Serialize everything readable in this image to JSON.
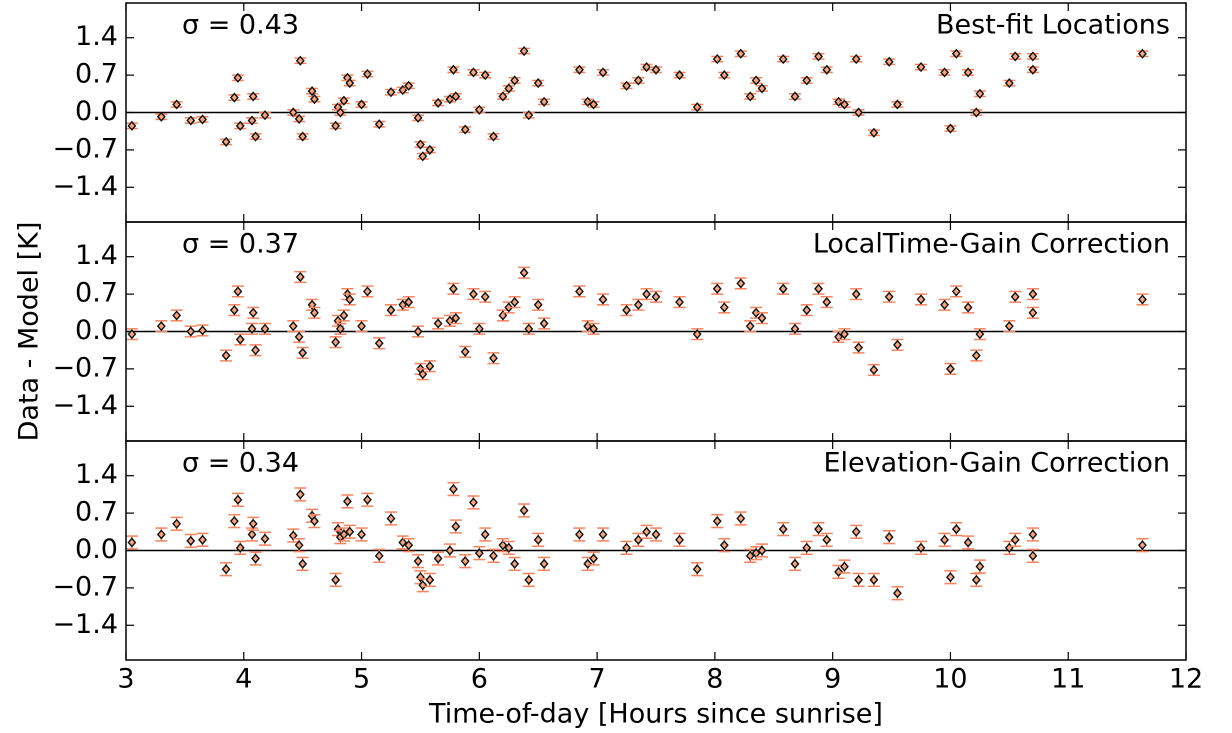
{
  "chart_data": [
    {
      "type": "scatter",
      "annotation": "σ = 0.43",
      "title": "Best-fit Locations",
      "x": [
        3.05,
        3.3,
        3.43,
        3.55,
        3.65,
        3.85,
        3.92,
        3.95,
        3.97,
        4.07,
        4.08,
        4.1,
        4.18,
        4.42,
        4.48,
        4.5,
        4.47,
        4.58,
        4.6,
        4.78,
        4.8,
        4.82,
        4.85,
        4.88,
        4.9,
        5.0,
        5.05,
        5.15,
        5.25,
        5.35,
        5.4,
        5.48,
        5.5,
        5.52,
        5.58,
        5.65,
        5.75,
        5.78,
        5.8,
        5.88,
        5.95,
        6.0,
        6.05,
        6.12,
        6.2,
        6.25,
        6.3,
        6.38,
        6.42,
        6.5,
        6.55,
        6.85,
        6.92,
        6.97,
        7.05,
        7.25,
        7.35,
        7.42,
        7.5,
        7.7,
        7.85,
        8.02,
        8.08,
        8.22,
        8.3,
        8.35,
        8.4,
        8.58,
        8.68,
        8.78,
        8.88,
        8.95,
        9.05,
        9.1,
        9.2,
        9.22,
        9.35,
        9.48,
        9.55,
        9.75,
        9.95,
        10.0,
        10.05,
        10.15,
        10.22,
        10.25,
        10.5,
        10.55,
        10.7,
        10.7,
        11.63
      ],
      "values": [
        -0.25,
        -0.08,
        0.15,
        -0.15,
        -0.13,
        -0.55,
        0.28,
        0.65,
        -0.25,
        -0.15,
        0.3,
        -0.45,
        -0.05,
        0.0,
        0.97,
        -0.45,
        -0.12,
        0.4,
        0.25,
        -0.25,
        0.1,
        0.0,
        0.22,
        0.65,
        0.55,
        0.15,
        0.72,
        -0.22,
        0.38,
        0.42,
        0.5,
        -0.1,
        -0.6,
        -0.82,
        -0.7,
        0.18,
        0.25,
        0.8,
        0.3,
        -0.32,
        0.75,
        0.05,
        0.7,
        -0.45,
        0.3,
        0.45,
        0.6,
        1.15,
        -0.05,
        0.55,
        0.2,
        0.8,
        0.2,
        0.15,
        0.75,
        0.5,
        0.6,
        0.85,
        0.8,
        0.7,
        0.1,
        1.0,
        0.7,
        1.1,
        0.3,
        0.6,
        0.45,
        1.0,
        0.3,
        0.6,
        1.05,
        0.8,
        0.2,
        0.15,
        1.0,
        0.0,
        -0.38,
        0.95,
        0.15,
        0.85,
        0.75,
        -0.3,
        1.1,
        0.75,
        0.0,
        0.35,
        0.55,
        1.05,
        1.05,
        0.8,
        1.1
      ],
      "error": 0.05,
      "color": "#f4845f",
      "xlim": [
        3,
        12
      ],
      "xticks": [
        3,
        4,
        5,
        6,
        7,
        8,
        9,
        10,
        11,
        12
      ],
      "ylim": [
        -2.05,
        2.05
      ],
      "yticks": [
        {
          "value": -1.4,
          "label": "−1.4"
        },
        {
          "value": -0.7,
          "label": "−0.7"
        },
        {
          "value": 0,
          "label": "0.0"
        },
        0.7,
        1.4
      ]
    },
    {
      "type": "scatter",
      "annotation": "σ = 0.37",
      "title": "LocalTime-Gain Correction",
      "ylabel": "Data - Model [K]",
      "x": [
        3.05,
        3.3,
        3.43,
        3.55,
        3.65,
        3.85,
        3.92,
        3.95,
        3.97,
        4.07,
        4.08,
        4.1,
        4.18,
        4.42,
        4.48,
        4.5,
        4.47,
        4.58,
        4.6,
        4.78,
        4.8,
        4.82,
        4.85,
        4.88,
        4.9,
        5.0,
        5.05,
        5.15,
        5.25,
        5.35,
        5.4,
        5.48,
        5.5,
        5.52,
        5.58,
        5.65,
        5.75,
        5.78,
        5.8,
        5.88,
        5.95,
        6.0,
        6.05,
        6.12,
        6.2,
        6.25,
        6.3,
        6.38,
        6.42,
        6.5,
        6.55,
        6.85,
        6.92,
        6.97,
        7.05,
        7.25,
        7.35,
        7.42,
        7.5,
        7.7,
        7.85,
        8.02,
        8.08,
        8.22,
        8.3,
        8.35,
        8.4,
        8.58,
        8.68,
        8.78,
        8.88,
        8.95,
        9.05,
        9.1,
        9.2,
        9.22,
        9.35,
        9.48,
        9.55,
        9.75,
        9.95,
        10.0,
        10.05,
        10.15,
        10.22,
        10.25,
        10.5,
        10.55,
        10.7,
        10.7,
        11.63
      ],
      "values": [
        -0.05,
        0.1,
        0.3,
        0.0,
        0.02,
        -0.45,
        0.4,
        0.75,
        -0.15,
        0.05,
        0.35,
        -0.35,
        0.05,
        0.1,
        1.02,
        -0.4,
        -0.1,
        0.5,
        0.35,
        -0.2,
        0.2,
        0.05,
        0.3,
        0.7,
        0.6,
        0.1,
        0.75,
        -0.22,
        0.4,
        0.5,
        0.55,
        0.0,
        -0.7,
        -0.8,
        -0.65,
        0.15,
        0.2,
        0.8,
        0.25,
        -0.38,
        0.7,
        0.05,
        0.65,
        -0.5,
        0.3,
        0.45,
        0.55,
        1.1,
        0.05,
        0.5,
        0.15,
        0.75,
        0.1,
        0.05,
        0.6,
        0.4,
        0.5,
        0.7,
        0.65,
        0.55,
        -0.05,
        0.8,
        0.45,
        0.9,
        0.1,
        0.35,
        0.25,
        0.8,
        0.05,
        0.4,
        0.8,
        0.55,
        -0.1,
        -0.05,
        0.7,
        -0.3,
        -0.72,
        0.65,
        -0.25,
        0.6,
        0.5,
        -0.7,
        0.75,
        0.45,
        -0.45,
        -0.05,
        0.1,
        0.65,
        0.7,
        0.35,
        0.6
      ],
      "error": 0.1,
      "color": "#f4845f",
      "xlim": [
        3,
        12
      ],
      "xticks": [
        3,
        4,
        5,
        6,
        7,
        8,
        9,
        10,
        11,
        12
      ],
      "ylim": [
        -2.05,
        2.05
      ],
      "yticks": [
        {
          "value": -1.4,
          "label": "−1.4"
        },
        {
          "value": -0.7,
          "label": "−0.7"
        },
        {
          "value": 0,
          "label": "0.0"
        },
        0.7,
        1.4
      ]
    },
    {
      "type": "scatter",
      "annotation": "σ = 0.34",
      "title": "Elevation-Gain Correction",
      "xlabel": "Time-of-day [Hours since sunrise]",
      "x": [
        3.05,
        3.3,
        3.43,
        3.55,
        3.65,
        3.85,
        3.92,
        3.95,
        3.97,
        4.07,
        4.08,
        4.1,
        4.18,
        4.42,
        4.48,
        4.5,
        4.47,
        4.58,
        4.6,
        4.78,
        4.8,
        4.82,
        4.85,
        4.88,
        4.9,
        5.0,
        5.05,
        5.15,
        5.25,
        5.35,
        5.4,
        5.48,
        5.5,
        5.52,
        5.58,
        5.65,
        5.75,
        5.78,
        5.8,
        5.88,
        5.95,
        6.0,
        6.05,
        6.12,
        6.2,
        6.25,
        6.3,
        6.38,
        6.42,
        6.5,
        6.55,
        6.85,
        6.92,
        6.97,
        7.05,
        7.25,
        7.35,
        7.42,
        7.5,
        7.7,
        7.85,
        8.02,
        8.08,
        8.22,
        8.3,
        8.35,
        8.4,
        8.58,
        8.68,
        8.78,
        8.88,
        8.95,
        9.05,
        9.1,
        9.2,
        9.22,
        9.35,
        9.48,
        9.55,
        9.75,
        9.95,
        10.0,
        10.05,
        10.15,
        10.22,
        10.25,
        10.5,
        10.55,
        10.7,
        10.7,
        11.63
      ],
      "values": [
        0.15,
        0.3,
        0.5,
        0.18,
        0.2,
        -0.35,
        0.55,
        0.95,
        0.05,
        0.3,
        0.5,
        -0.15,
        0.22,
        0.28,
        1.05,
        -0.25,
        0.1,
        0.65,
        0.55,
        -0.55,
        0.4,
        0.25,
        0.3,
        0.92,
        0.35,
        0.3,
        0.95,
        -0.1,
        0.6,
        0.15,
        0.1,
        -0.2,
        -0.5,
        -0.65,
        -0.55,
        -0.15,
        0.0,
        1.15,
        0.45,
        -0.2,
        0.9,
        -0.05,
        0.3,
        -0.1,
        0.1,
        0.05,
        -0.25,
        0.75,
        -0.55,
        0.2,
        -0.25,
        0.3,
        -0.25,
        -0.15,
        0.3,
        0.05,
        0.2,
        0.35,
        0.3,
        0.2,
        -0.35,
        0.55,
        0.1,
        0.6,
        -0.1,
        -0.05,
        0.0,
        0.4,
        -0.25,
        0.05,
        0.4,
        0.2,
        -0.4,
        -0.3,
        0.35,
        -0.55,
        -0.55,
        0.25,
        -0.8,
        0.05,
        0.2,
        -0.5,
        0.4,
        0.15,
        -0.55,
        -0.3,
        0.05,
        0.2,
        0.3,
        -0.1,
        0.1
      ],
      "error": 0.12,
      "color": "#f4845f",
      "xlim": [
        3,
        12
      ],
      "xticks": [
        3,
        4,
        5,
        6,
        7,
        8,
        9,
        10,
        11,
        12
      ],
      "ylim": [
        -2.05,
        2.05
      ],
      "yticks": [
        {
          "value": -1.4,
          "label": "−1.4"
        },
        {
          "value": -0.7,
          "label": "−0.7"
        },
        {
          "value": 0,
          "label": "0.0"
        },
        0.7,
        1.4
      ]
    }
  ]
}
